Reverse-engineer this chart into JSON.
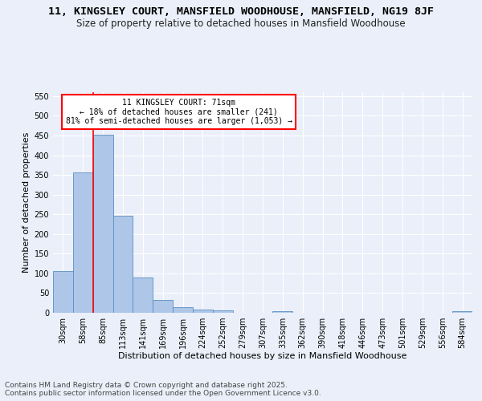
{
  "title1": "11, KINGSLEY COURT, MANSFIELD WOODHOUSE, MANSFIELD, NG19 8JF",
  "title2": "Size of property relative to detached houses in Mansfield Woodhouse",
  "xlabel": "Distribution of detached houses by size in Mansfield Woodhouse",
  "ylabel": "Number of detached properties",
  "footer1": "Contains HM Land Registry data © Crown copyright and database right 2025.",
  "footer2": "Contains public sector information licensed under the Open Government Licence v3.0.",
  "categories": [
    "30sqm",
    "58sqm",
    "85sqm",
    "113sqm",
    "141sqm",
    "169sqm",
    "196sqm",
    "224sqm",
    "252sqm",
    "279sqm",
    "307sqm",
    "335sqm",
    "362sqm",
    "390sqm",
    "418sqm",
    "446sqm",
    "473sqm",
    "501sqm",
    "529sqm",
    "556sqm",
    "584sqm"
  ],
  "values": [
    105,
    357,
    453,
    246,
    90,
    33,
    14,
    9,
    6,
    0,
    0,
    5,
    0,
    0,
    0,
    0,
    0,
    0,
    0,
    0,
    5
  ],
  "bar_color": "#aec6e8",
  "bar_edge_color": "#5a8fc2",
  "vline_x": 1.5,
  "vline_color": "red",
  "annotation_title": "11 KINGSLEY COURT: 71sqm",
  "annotation_line1": "← 18% of detached houses are smaller (241)",
  "annotation_line2": "81% of semi-detached houses are larger (1,053) →",
  "annotation_box_color": "white",
  "annotation_box_edge": "red",
  "ylim": [
    0,
    560
  ],
  "yticks": [
    0,
    50,
    100,
    150,
    200,
    250,
    300,
    350,
    400,
    450,
    500,
    550
  ],
  "bg_color": "#eaeff9",
  "plot_bg_color": "#eaeff9",
  "grid_color": "white",
  "title1_fontsize": 9.5,
  "title2_fontsize": 8.5,
  "xlabel_fontsize": 8,
  "ylabel_fontsize": 8,
  "footer_fontsize": 6.5,
  "tick_fontsize": 7,
  "annot_fontsize": 7
}
